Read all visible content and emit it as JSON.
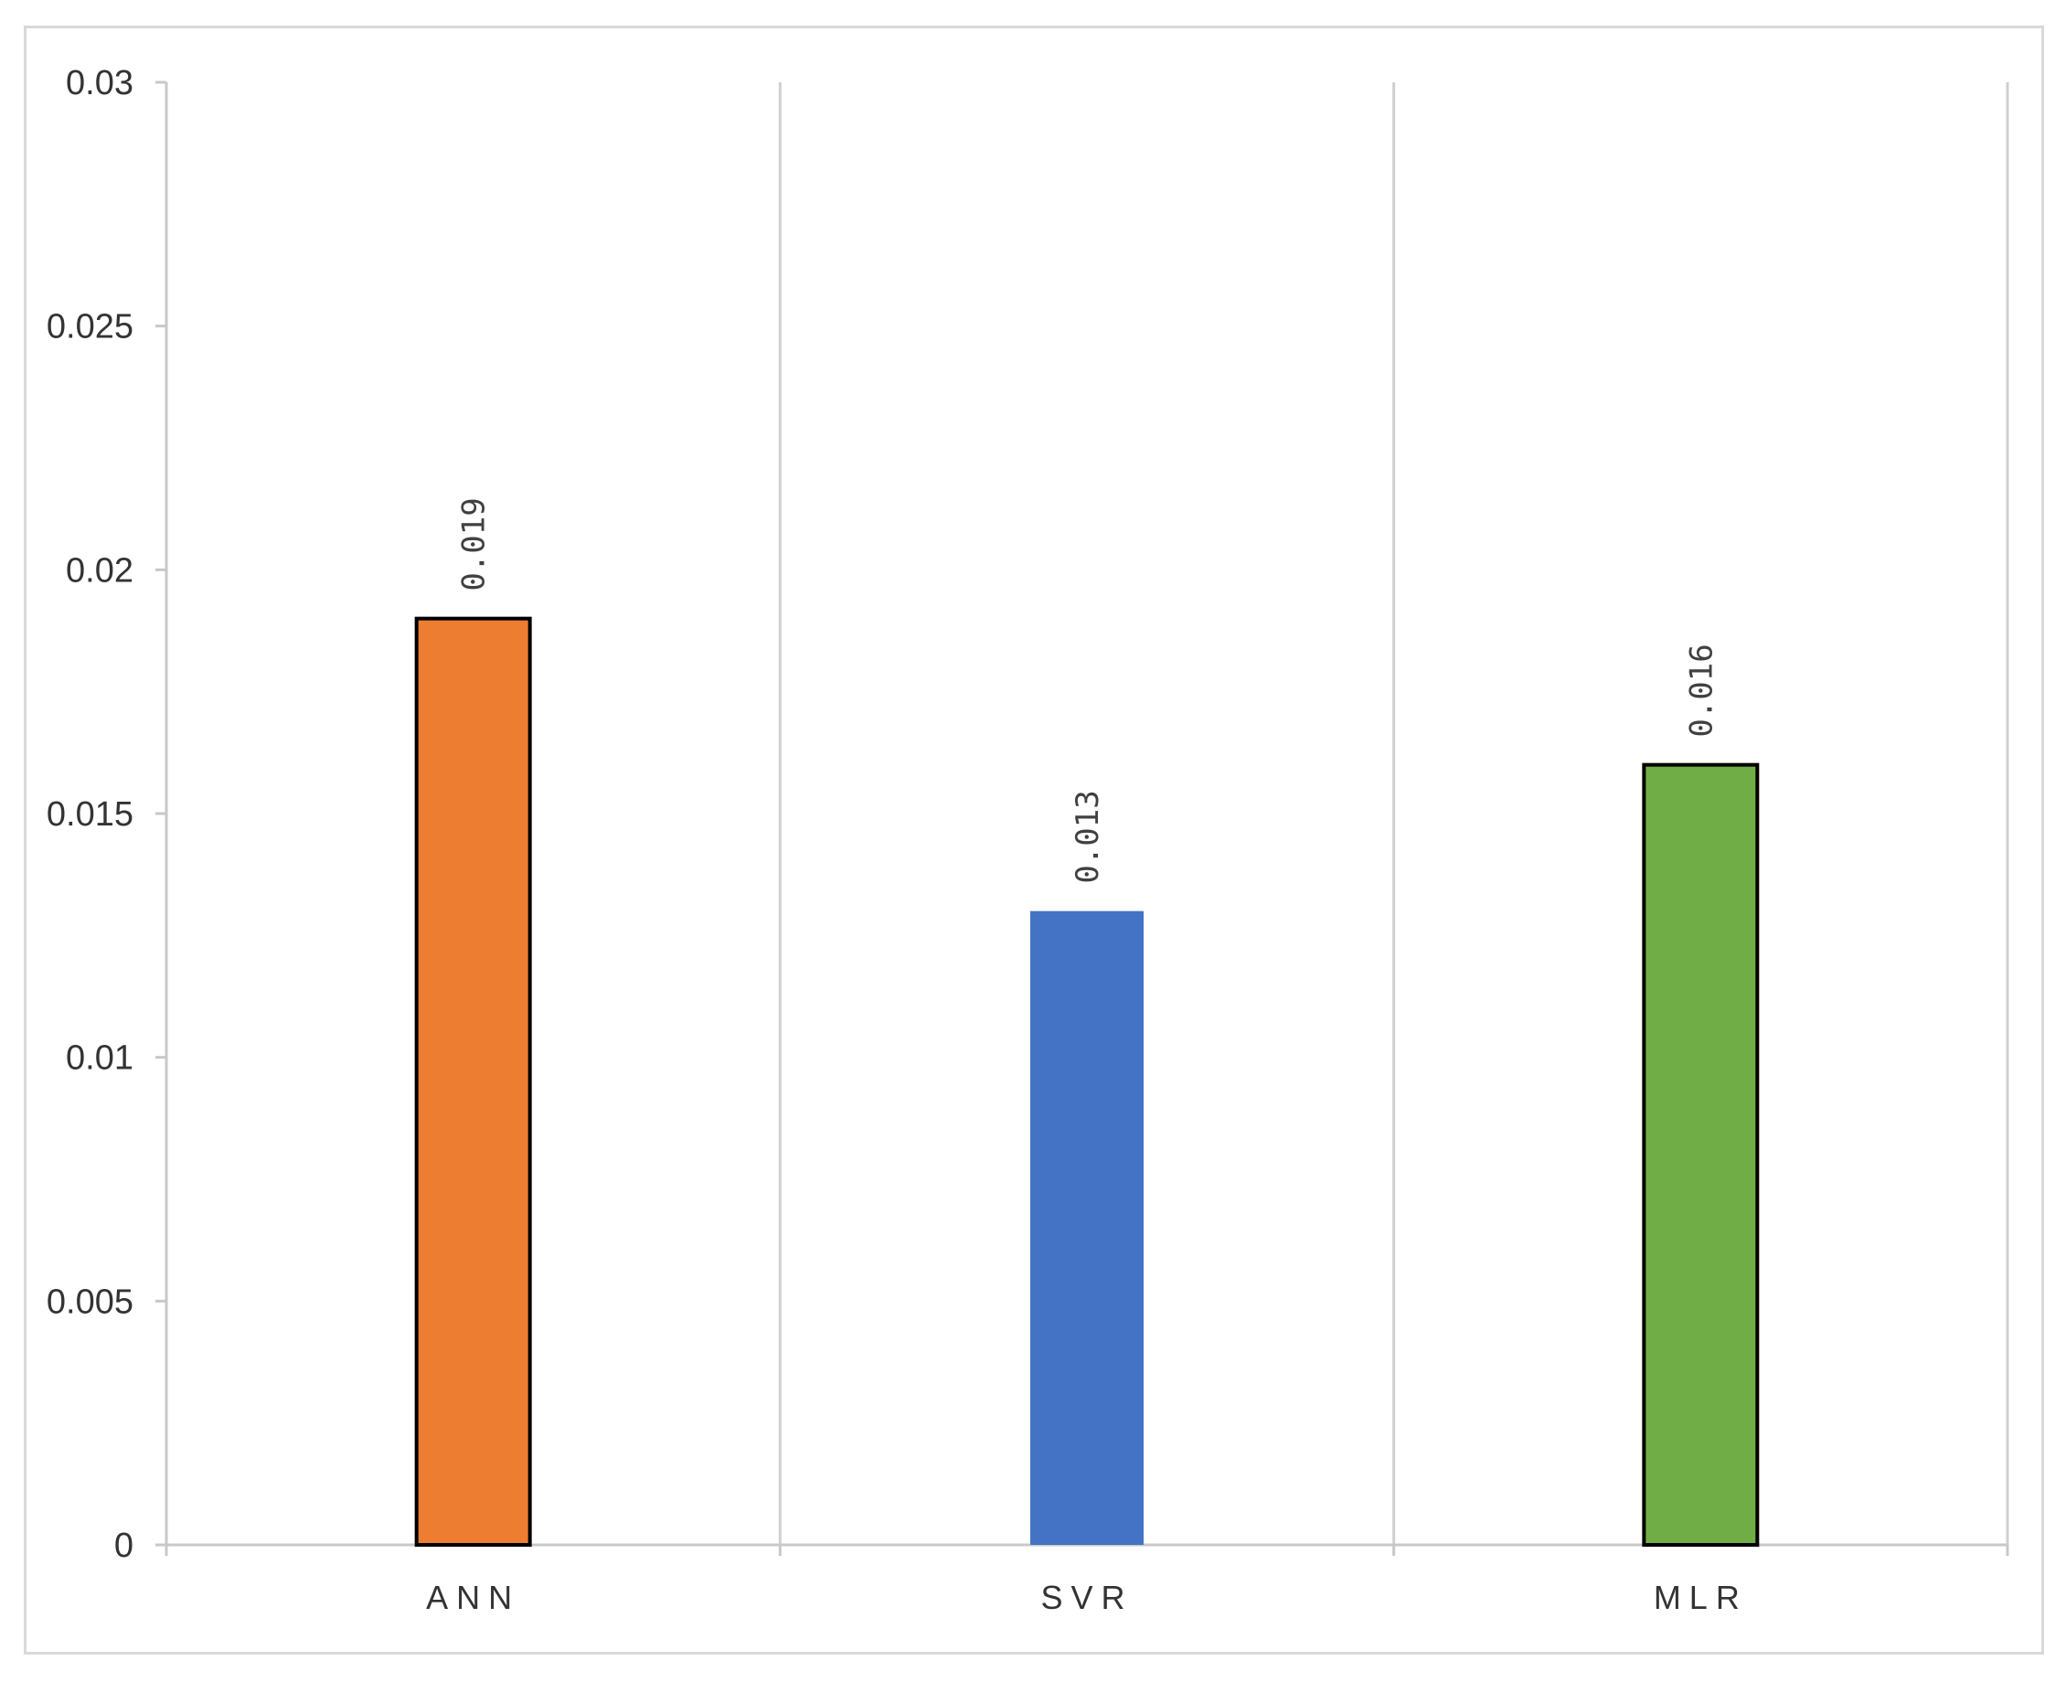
{
  "chart_data": {
    "type": "bar",
    "categories": [
      "ANN",
      "SVR",
      "MLR"
    ],
    "values": [
      0.019,
      0.013,
      0.016
    ],
    "data_labels": [
      "0.019",
      "0.013",
      "0.016"
    ],
    "colors": [
      "#ED7D31",
      "#4472C4",
      "#70AD47"
    ],
    "bar_outline": "#000000",
    "title": "",
    "xlabel": "",
    "ylabel": "",
    "ylim": [
      0,
      0.03
    ],
    "yticks": [
      0,
      0.005,
      0.01,
      0.015,
      0.02,
      0.025,
      0.03
    ],
    "ytick_labels": [
      "0",
      "0.005",
      "0.01",
      "0.015",
      "0.02",
      "0.025",
      "0.03"
    ],
    "grid": "vertical category separators",
    "legend": "none"
  }
}
